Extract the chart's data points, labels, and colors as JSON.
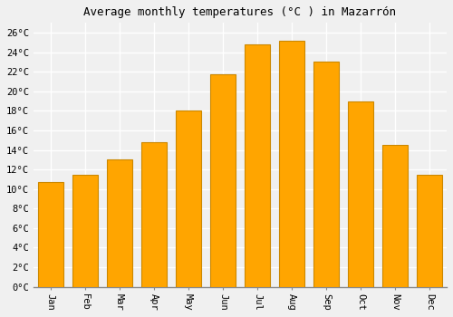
{
  "title": "Average monthly temperatures (°C ) in Mazarrón",
  "months": [
    "Jan",
    "Feb",
    "Mar",
    "Apr",
    "May",
    "Jun",
    "Jul",
    "Aug",
    "Sep",
    "Oct",
    "Nov",
    "Dec"
  ],
  "values": [
    10.7,
    11.5,
    13.0,
    14.8,
    18.0,
    21.7,
    24.8,
    25.2,
    23.0,
    19.0,
    14.5,
    11.5
  ],
  "bar_color": "#FFA500",
  "bar_edge_color": "#CC8800",
  "background_color": "#f0f0f0",
  "plot_bg_color": "#f0f0f0",
  "grid_color": "#ffffff",
  "ylim": [
    0,
    27
  ],
  "ytick_step": 2,
  "title_fontsize": 9,
  "tick_fontsize": 7.5,
  "font_family": "monospace",
  "bar_width": 0.75
}
